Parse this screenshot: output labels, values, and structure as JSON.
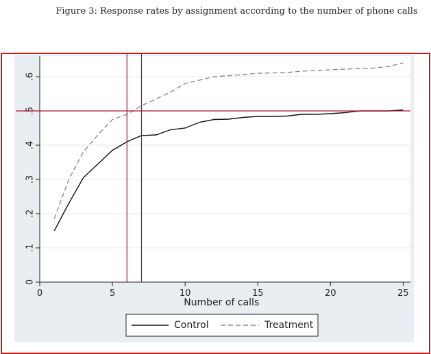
{
  "figure_caption": "Figure 3: Response rates by assignment according to the number of phone calls",
  "colors": {
    "outer_border": "#e01010",
    "panel_background": "#e8eef2",
    "plot_background": "#ffffff",
    "reference_lines": "#b01030",
    "control_line": "#111111",
    "treatment_line": "#8a8a8a"
  },
  "chart_data": {
    "type": "line",
    "title": "",
    "xlabel": "Number of calls",
    "ylabel": "",
    "xlim": [
      0,
      25.5
    ],
    "ylim": [
      0,
      0.66
    ],
    "x_ticks": [
      0,
      5,
      10,
      15,
      20,
      25
    ],
    "x_tick_labels": [
      "0",
      "5",
      "10",
      "15",
      "20",
      "25"
    ],
    "y_ticks": [
      0,
      0.1,
      0.2,
      0.3,
      0.4,
      0.5,
      0.6
    ],
    "y_tick_labels": [
      "0",
      ".1",
      ".2",
      ".3",
      ".4",
      ".5",
      ".6"
    ],
    "grid": "horizontal",
    "legend_position": "bottom",
    "reference_lines": {
      "vertical_x": [
        6,
        7
      ],
      "horizontal_y": [
        0.5
      ]
    },
    "x": [
      1,
      2,
      3,
      4,
      5,
      6,
      7,
      8,
      9,
      10,
      11,
      12,
      13,
      14,
      15,
      16,
      17,
      18,
      19,
      20,
      21,
      22,
      23,
      24,
      25
    ],
    "series": [
      {
        "name": "Control",
        "style": "solid",
        "values": [
          0.15,
          0.23,
          0.305,
          0.345,
          0.385,
          0.41,
          0.428,
          0.43,
          0.445,
          0.45,
          0.467,
          0.475,
          0.476,
          0.481,
          0.484,
          0.484,
          0.485,
          0.49,
          0.49,
          0.492,
          0.495,
          0.5,
          0.5,
          0.5,
          0.503
        ]
      },
      {
        "name": "Treatment",
        "style": "dashed",
        "values": [
          0.185,
          0.3,
          0.38,
          0.43,
          0.475,
          0.49,
          0.515,
          0.535,
          0.555,
          0.58,
          0.59,
          0.6,
          0.603,
          0.606,
          0.61,
          0.611,
          0.612,
          0.616,
          0.618,
          0.62,
          0.622,
          0.624,
          0.625,
          0.63,
          0.64
        ]
      }
    ]
  }
}
